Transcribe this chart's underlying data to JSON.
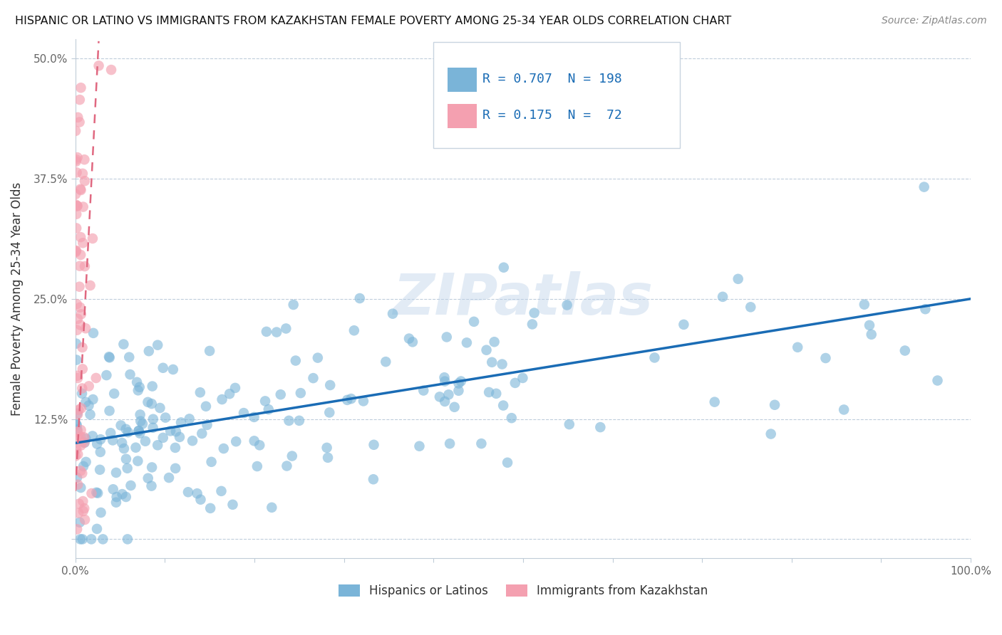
{
  "title": "HISPANIC OR LATINO VS IMMIGRANTS FROM KAZAKHSTAN FEMALE POVERTY AMONG 25-34 YEAR OLDS CORRELATION CHART",
  "source": "Source: ZipAtlas.com",
  "ylabel": "Female Poverty Among 25-34 Year Olds",
  "xlim": [
    0,
    1.0
  ],
  "ylim": [
    -0.02,
    0.52
  ],
  "xticks": [
    0.0,
    0.1,
    0.2,
    0.3,
    0.4,
    0.5,
    0.6,
    0.7,
    0.8,
    0.9,
    1.0
  ],
  "xticklabels": [
    "0.0%",
    "",
    "",
    "",
    "",
    "",
    "",
    "",
    "",
    "",
    "100.0%"
  ],
  "yticks": [
    0.0,
    0.125,
    0.25,
    0.375,
    0.5
  ],
  "yticklabels": [
    "",
    "12.5%",
    "25.0%",
    "37.5%",
    "50.0%"
  ],
  "blue_color": "#7ab4d8",
  "pink_color": "#f4a0b0",
  "blue_line_color": "#1a6cb5",
  "pink_line_color": "#e06880",
  "R_blue": 0.707,
  "N_blue": 198,
  "R_pink": 0.175,
  "N_pink": 72,
  "legend_labels": [
    "Hispanics or Latinos",
    "Immigrants from Kazakhstan"
  ],
  "watermark": "ZIPatlas",
  "background_color": "#ffffff"
}
